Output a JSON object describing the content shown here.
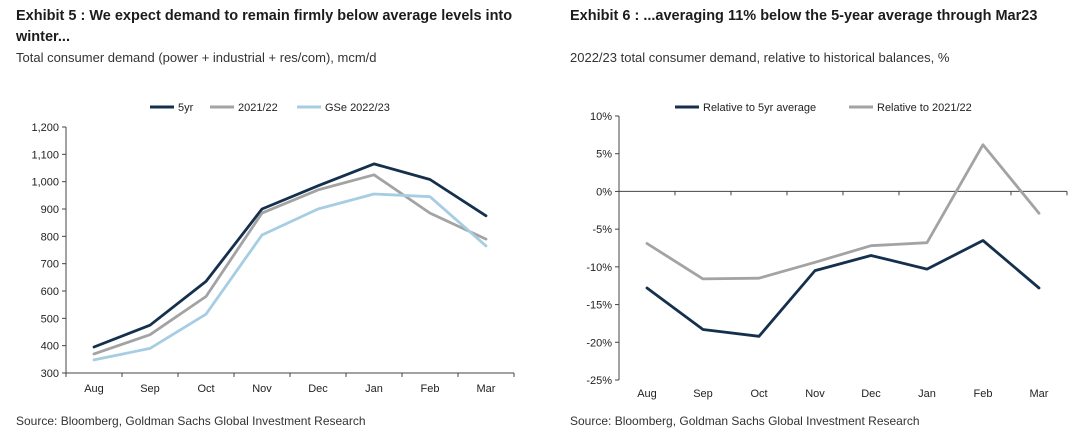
{
  "chart_data": [
    {
      "type": "line",
      "exhibit": "Exhibit 5 :",
      "title": "We expect demand to remain firmly below average levels into winter...",
      "subtitle": "Total consumer demand (power + industrial + res/com), mcm/d",
      "source": "Source: Bloomberg, Goldman Sachs Global Investment Research",
      "categories": [
        "Aug",
        "Sep",
        "Oct",
        "Nov",
        "Dec",
        "Jan",
        "Feb",
        "Mar"
      ],
      "y_ticks": [
        "300",
        "400",
        "500",
        "600",
        "700",
        "800",
        "900",
        "1,000",
        "1,100",
        "1,200"
      ],
      "ylim": [
        300,
        1200
      ],
      "grid": false,
      "legend_position": "top",
      "series": [
        {
          "name": "5yr",
          "color": "#15304d",
          "values": [
            395,
            475,
            635,
            900,
            985,
            1065,
            1008,
            875
          ]
        },
        {
          "name": "2021/22",
          "color": "#a3a3a3",
          "values": [
            370,
            440,
            580,
            885,
            970,
            1025,
            885,
            790
          ]
        },
        {
          "name": "GSe 2022/23",
          "color": "#a7cde3",
          "values": [
            348,
            390,
            515,
            805,
            900,
            955,
            945,
            765
          ]
        }
      ]
    },
    {
      "type": "line",
      "exhibit": "Exhibit 6 :",
      "title": "...averaging 11% below the 5-year average through Mar23",
      "subtitle": "2022/23 total consumer demand, relative to historical balances, %",
      "source": "Source: Bloomberg, Goldman Sachs Global Investment Research",
      "categories": [
        "Aug",
        "Sep",
        "Oct",
        "Nov",
        "Dec",
        "Jan",
        "Feb",
        "Mar"
      ],
      "y_ticks": [
        "-25%",
        "-20%",
        "-15%",
        "-10%",
        "-5%",
        "0%",
        "5%",
        "10%"
      ],
      "ylim": [
        -25,
        10
      ],
      "grid": false,
      "legend_position": "top",
      "series": [
        {
          "name": "Relative to 5yr average",
          "color": "#15304d",
          "values": [
            -12.8,
            -18.3,
            -19.2,
            -10.5,
            -8.5,
            -10.3,
            -6.5,
            -12.8
          ]
        },
        {
          "name": "Relative to 2021/22",
          "color": "#a3a3a3",
          "values": [
            -6.9,
            -11.6,
            -11.5,
            -9.4,
            -7.2,
            -6.8,
            6.2,
            -2.9
          ]
        }
      ]
    }
  ]
}
